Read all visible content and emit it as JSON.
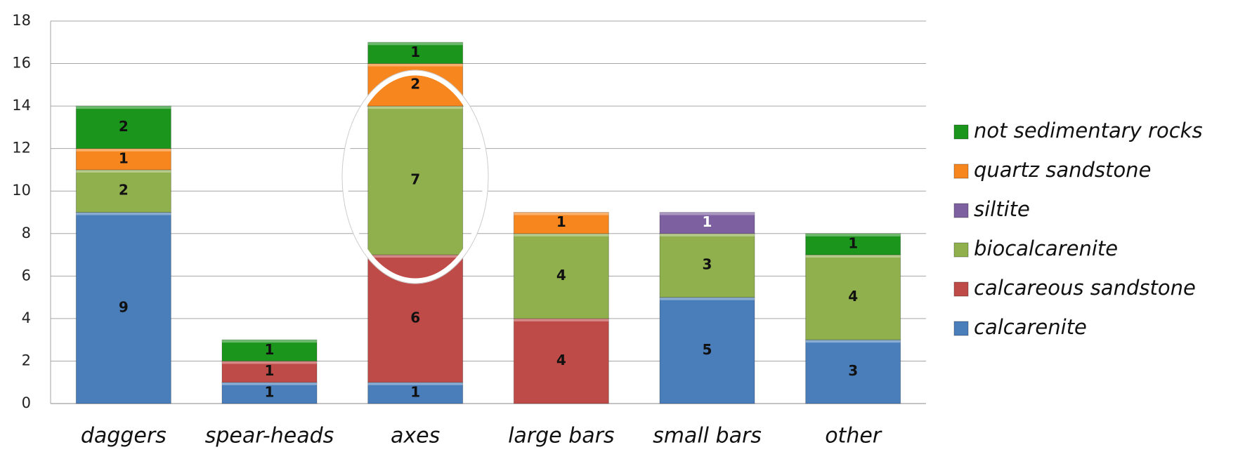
{
  "chart_data": {
    "type": "stacked_bar",
    "categories": [
      "daggers",
      "spear-heads",
      "axes",
      "large bars",
      "small bars",
      "other"
    ],
    "series": [
      {
        "name": "calcarenite",
        "color": "#4a7ebb",
        "values": [
          9,
          1,
          1,
          null,
          5,
          3
        ]
      },
      {
        "name": "calcareous sandstone",
        "color": "#be4b48",
        "values": [
          null,
          1,
          6,
          4,
          null,
          null
        ]
      },
      {
        "name": "biocalcarenite",
        "color": "#8fb04c",
        "values": [
          2,
          null,
          7,
          4,
          3,
          4
        ]
      },
      {
        "name": "siltite",
        "color": "#7d60a0",
        "values": [
          null,
          null,
          null,
          null,
          1,
          null
        ]
      },
      {
        "name": "quartz sandstone",
        "color": "#f7861e",
        "values": [
          1,
          null,
          2,
          1,
          null,
          null
        ]
      },
      {
        "name": "not sedimentary rocks",
        "color": "#1c951c",
        "values": [
          2,
          1,
          1,
          null,
          null,
          1
        ]
      }
    ],
    "ylim": [
      0,
      18
    ],
    "yticks": [
      0,
      2,
      4,
      6,
      8,
      10,
      12,
      14,
      16,
      18
    ],
    "grid": true,
    "legend": "right"
  }
}
